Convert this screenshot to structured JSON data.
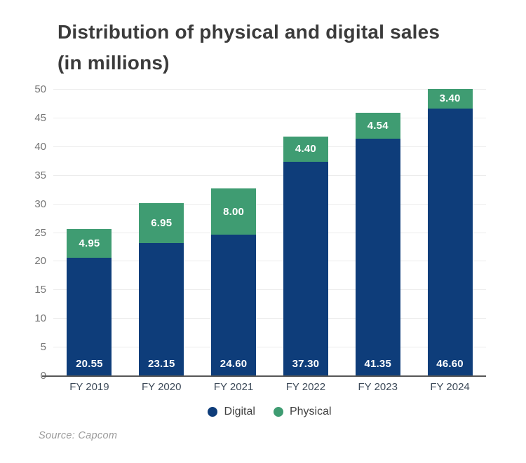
{
  "header": {
    "title_lines": [
      "Distribution of physical and digital sales",
      "(in millions)"
    ]
  },
  "footer": {
    "source": "Source: Capcom"
  },
  "legend": {
    "items": [
      {
        "label": "Digital",
        "color": "#0e3d7a"
      },
      {
        "label": "Physical",
        "color": "#3f9c72"
      }
    ]
  },
  "chart_data": {
    "type": "bar",
    "stacked": true,
    "title": "Distribution of physical and digital sales (in millions)",
    "categories": [
      "FY 2019",
      "FY 2020",
      "FY 2021",
      "FY 2022",
      "FY 2023",
      "FY 2024"
    ],
    "series": [
      {
        "name": "Digital",
        "color": "#0e3d7a",
        "values": [
          20.55,
          23.15,
          24.6,
          37.3,
          41.35,
          46.6
        ]
      },
      {
        "name": "Physical",
        "color": "#3f9c72",
        "values": [
          4.95,
          6.95,
          8.0,
          4.4,
          4.54,
          3.4
        ]
      }
    ],
    "value_label_decimals": 2,
    "ylim": [
      0,
      50
    ],
    "ytick_step": 5,
    "grid": true,
    "legend_position": "bottom",
    "colors": {
      "grid": "#ececec",
      "baseline": "#565656",
      "y_tick_text": "#757575",
      "x_tick_text": "#3d4a59",
      "value_label_text": "#ffffff",
      "title_text": "#3b3b3b",
      "background": "#ffffff"
    }
  }
}
